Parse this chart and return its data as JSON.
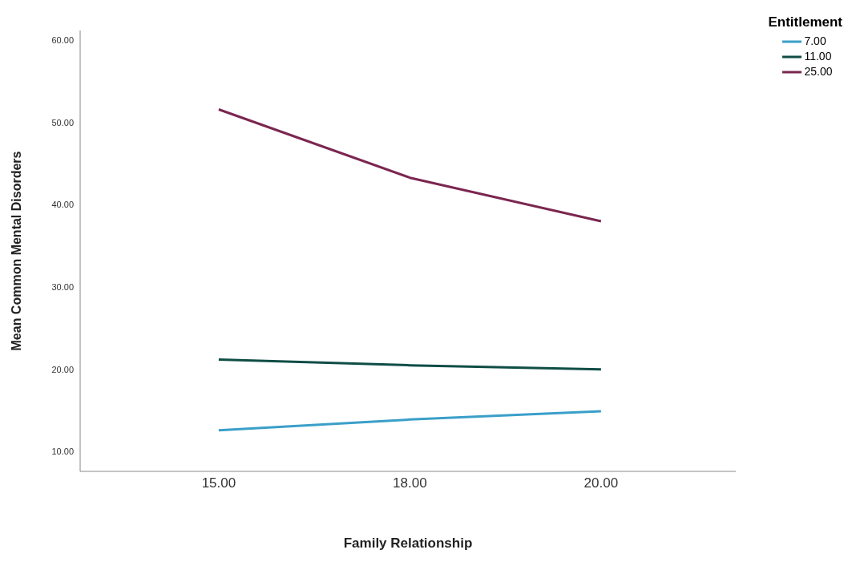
{
  "chart_data": {
    "type": "line",
    "xlabel": "Family Relationship",
    "ylabel": "Mean Common Mental Disorders",
    "legend_title": "Entitlement",
    "legend": "top right",
    "grid": false,
    "marker": "none",
    "line_style": "solid",
    "categories": [
      "15.00",
      "18.00",
      "20.00"
    ],
    "ylim": [
      7.6,
      61.2
    ],
    "yticks": [
      {
        "value": 10,
        "label": "10.00"
      },
      {
        "value": 20,
        "label": "20.00"
      },
      {
        "value": 30,
        "label": "30.00"
      },
      {
        "value": 40,
        "label": "40.00"
      },
      {
        "value": 50,
        "label": "50.00"
      },
      {
        "value": 60,
        "label": "60.00"
      }
    ],
    "series": [
      {
        "name": "7.00",
        "color": "#3a9fc9",
        "values": [
          12.6,
          13.9,
          14.9
        ]
      },
      {
        "name": "11.00",
        "color": "#0f4d46",
        "values": [
          21.2,
          20.5,
          20.0
        ]
      },
      {
        "name": "25.00",
        "color": "#7b2650",
        "values": [
          51.6,
          43.3,
          38.0
        ]
      }
    ]
  }
}
